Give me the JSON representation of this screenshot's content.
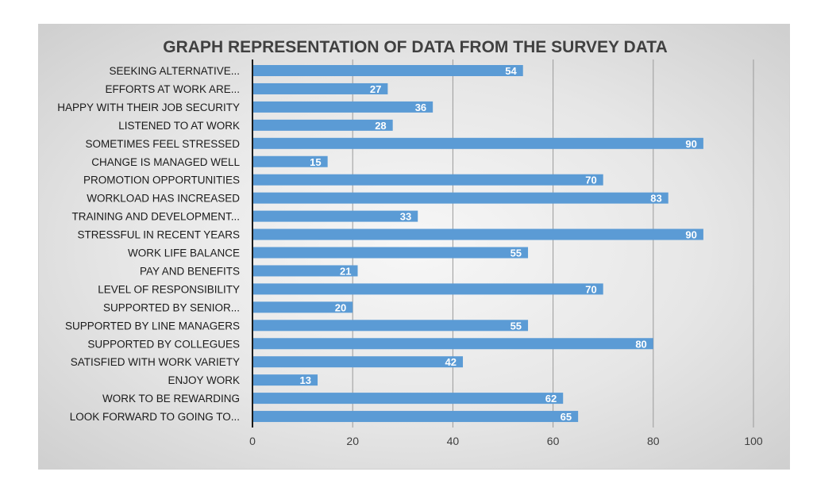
{
  "chart_data": {
    "type": "bar",
    "orientation": "horizontal",
    "title": "GRAPH REPRESENTATION OF DATA FROM THE SURVEY DATA",
    "xlabel": "",
    "ylabel": "",
    "xlim": [
      0,
      100
    ],
    "ticks": [
      0,
      20,
      40,
      60,
      80,
      100
    ],
    "grid": true,
    "legend": "none",
    "bar_color": "#5b9bd5",
    "categories": [
      "SEEKING ALTERNATIVE...",
      "EFFORTS AT WORK ARE...",
      "HAPPY WITH THEIR JOB SECURITY",
      "LISTENED TO AT WORK",
      "SOMETIMES FEEL STRESSED",
      "CHANGE IS MANAGED WELL",
      "PROMOTION OPPORTUNITIES",
      "WORKLOAD HAS INCREASED",
      "TRAINING AND DEVELOPMENT...",
      "STRESSFUL IN RECENT YEARS",
      "WORK LIFE BALANCE",
      "PAY AND BENEFITS",
      "LEVEL OF RESPONSIBILITY",
      "SUPPORTED BY SENIOR...",
      "SUPPORTED BY LINE MANAGERS",
      "SUPPORTED BY COLLEGUES",
      "SATISFIED WITH WORK VARIETY",
      "ENJOY WORK",
      "WORK TO BE REWARDING",
      "LOOK FORWARD TO GOING TO..."
    ],
    "values": [
      54,
      27,
      36,
      28,
      90,
      15,
      70,
      83,
      33,
      90,
      55,
      21,
      70,
      20,
      55,
      80,
      42,
      13,
      62,
      65
    ]
  }
}
